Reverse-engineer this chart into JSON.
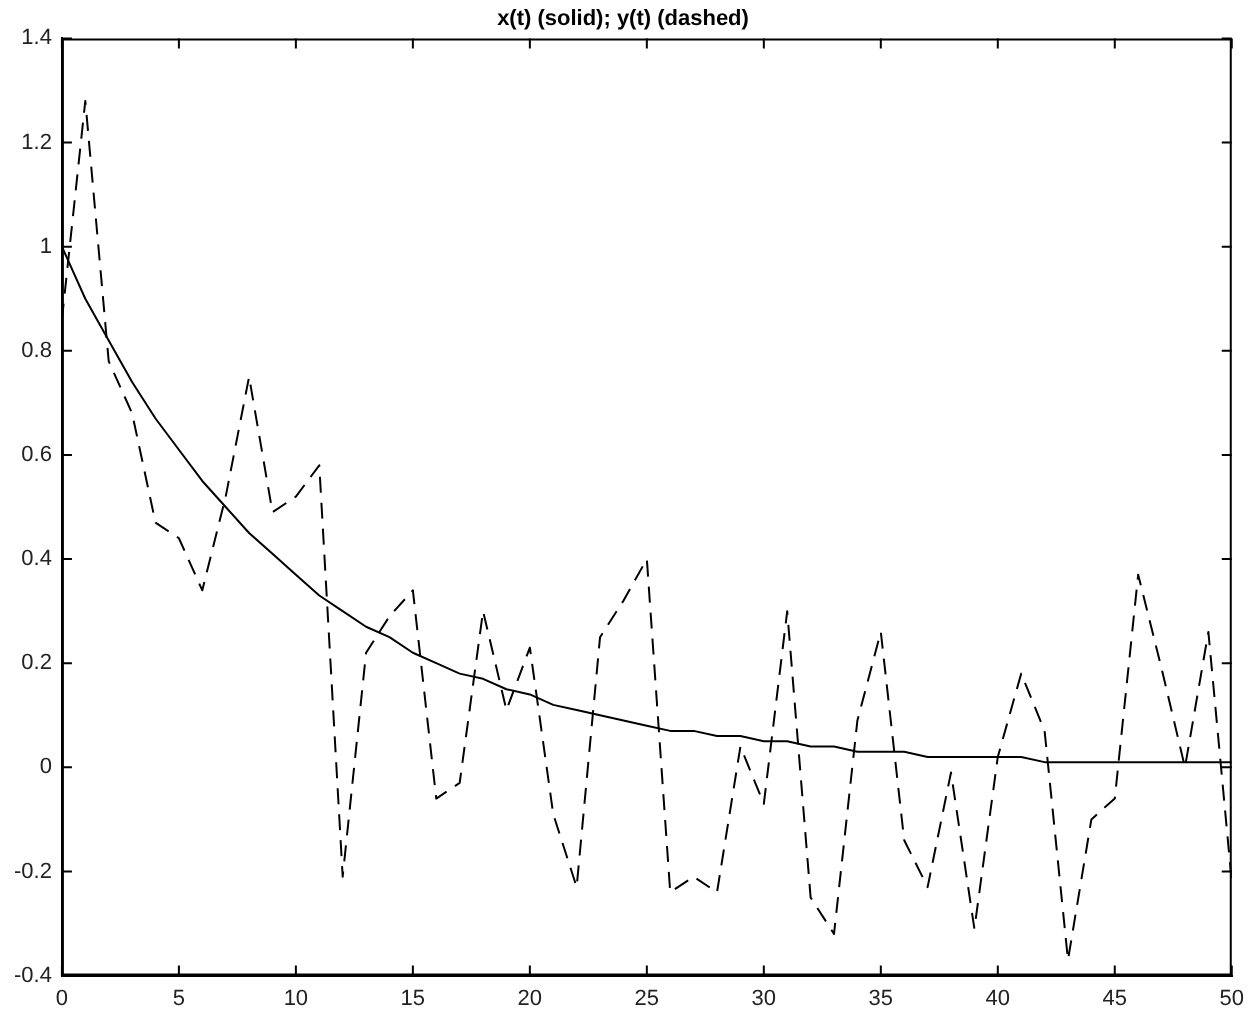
{
  "chart_data": {
    "type": "line",
    "title": "x(t) (solid); y(t) (dashed)",
    "x": [
      0,
      1,
      2,
      3,
      4,
      5,
      6,
      7,
      8,
      9,
      10,
      11,
      12,
      13,
      14,
      15,
      16,
      17,
      18,
      19,
      20,
      21,
      22,
      23,
      24,
      25,
      26,
      27,
      28,
      29,
      30,
      31,
      32,
      33,
      34,
      35,
      36,
      37,
      38,
      39,
      40,
      41,
      42,
      43,
      44,
      45,
      46,
      47,
      48,
      49,
      50
    ],
    "series": [
      {
        "color": "#000000",
        "line_style": "solid",
        "values": [
          1.0,
          0.9,
          0.82,
          0.74,
          0.67,
          0.61,
          0.55,
          0.5,
          0.45,
          0.41,
          0.37,
          0.33,
          0.3,
          0.27,
          0.25,
          0.22,
          0.2,
          0.18,
          0.17,
          0.15,
          0.14,
          0.12,
          0.11,
          0.1,
          0.09,
          0.08,
          0.07,
          0.07,
          0.06,
          0.06,
          0.05,
          0.05,
          0.04,
          0.04,
          0.03,
          0.03,
          0.03,
          0.02,
          0.02,
          0.02,
          0.02,
          0.02,
          0.01,
          0.01,
          0.01,
          0.01,
          0.01,
          0.01,
          0.01,
          0.01,
          0.01
        ]
      },
      {
        "color": "#000000",
        "line_style": "dashed",
        "values": [
          0.86,
          1.28,
          0.78,
          0.68,
          0.47,
          0.44,
          0.34,
          0.52,
          0.75,
          0.49,
          0.52,
          0.58,
          -0.21,
          0.22,
          0.29,
          0.34,
          -0.06,
          -0.03,
          0.3,
          0.11,
          0.23,
          -0.09,
          -0.23,
          0.25,
          0.32,
          0.4,
          -0.24,
          -0.21,
          -0.24,
          0.04,
          -0.07,
          0.3,
          -0.25,
          -0.32,
          0.09,
          0.26,
          -0.14,
          -0.23,
          -0.01,
          -0.31,
          0.02,
          0.18,
          0.07,
          -0.37,
          -0.1,
          -0.06,
          0.37,
          0.19,
          0.0,
          0.26,
          -0.22
        ]
      }
    ],
    "xlim": [
      0,
      50
    ],
    "xticks": [
      0,
      5,
      10,
      15,
      20,
      25,
      30,
      35,
      40,
      45,
      50
    ],
    "ylim": [
      -0.4,
      1.4
    ],
    "yticks": [
      -0.4,
      -0.2,
      0,
      0.2,
      0.4,
      0.6,
      0.8,
      1,
      1.2,
      1.4
    ],
    "grid": false,
    "legend": false,
    "marker": "none"
  }
}
